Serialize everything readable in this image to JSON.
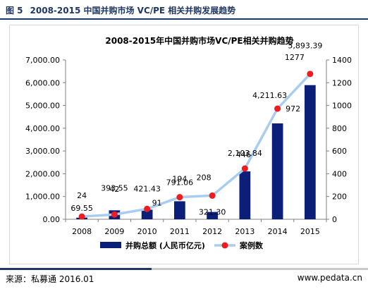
{
  "figure": {
    "number": "图 5",
    "caption": "2008-2015 中国并购市场 VC/PE 相关并购发展趋势"
  },
  "footer": {
    "source": "来源：私募通 2016.01",
    "website": "www.pedata.cn"
  },
  "colors": {
    "bar": "#0b1f78",
    "line": "#a9cdf1",
    "marker": "#ee1d1d",
    "accent": "#1f3763"
  },
  "chart_data": {
    "type": "bar",
    "title": "2008-2015年中国并购市场VC/PE相关并购趋势",
    "categories": [
      "2008",
      "2009",
      "2010",
      "2011",
      "2012",
      "2013",
      "2014",
      "2015"
    ],
    "series": [
      {
        "name": "并购总额 (人民币亿元)",
        "type": "bar",
        "axis": "left",
        "values": [
          69.55,
          393.55,
          421.43,
          791.06,
          321.3,
          2103.84,
          4211.63,
          5893.39
        ],
        "labels": [
          "69.55",
          "393.55",
          "421.43",
          "791.06",
          "321.30",
          "2,103.84",
          "4,211.63",
          "5,893.39"
        ]
      },
      {
        "name": "案例数",
        "type": "line",
        "axis": "right",
        "values": [
          24,
          42,
          91,
          194,
          208,
          446,
          972,
          1277
        ],
        "labels": [
          "24",
          "42",
          "91",
          "194",
          "208",
          "446",
          "972",
          "1277"
        ]
      }
    ],
    "y_left": {
      "lim": [
        0,
        7000
      ],
      "ticks": [
        0,
        1000,
        2000,
        3000,
        4000,
        5000,
        6000,
        7000
      ],
      "tick_labels": [
        "0.00",
        "1,000.00",
        "2,000.00",
        "3,000.00",
        "4,000.00",
        "5,000.00",
        "6,000.00",
        "7,000.00"
      ]
    },
    "y_right": {
      "lim": [
        0,
        1400
      ],
      "ticks": [
        0,
        200,
        400,
        600,
        800,
        1000,
        1200,
        1400
      ],
      "tick_labels": [
        "0",
        "200",
        "400",
        "600",
        "800",
        "1000",
        "1200",
        "1400"
      ]
    },
    "grid": false,
    "legend": "bottom"
  }
}
